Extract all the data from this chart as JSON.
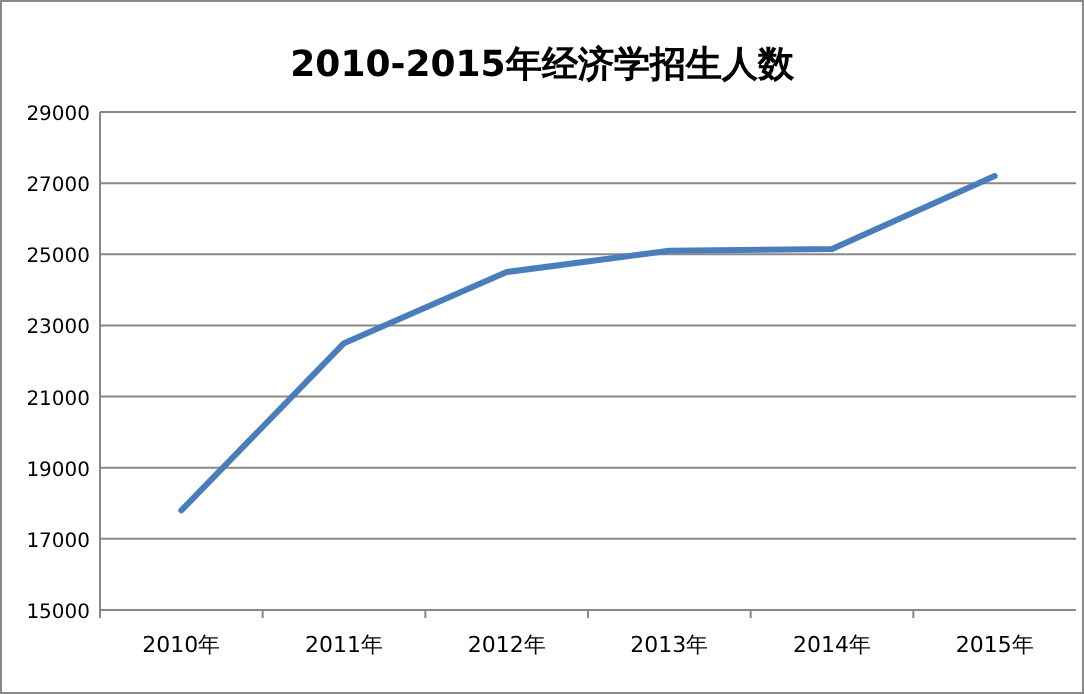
{
  "chart_data": {
    "type": "line",
    "title": "2010-2015年经济学招生人数",
    "categories": [
      "2010年",
      "2011年",
      "2012年",
      "2013年",
      "2014年",
      "2015年"
    ],
    "series": [
      {
        "color": "#4a7ebb",
        "values": [
          17800,
          22500,
          24500,
          25100,
          25150,
          27200
        ]
      }
    ],
    "ylim": [
      15000,
      29000
    ],
    "yticks": [
      15000,
      17000,
      19000,
      21000,
      23000,
      25000,
      27000,
      29000
    ],
    "grid": "y",
    "marker": "none",
    "line_style": "solid"
  }
}
